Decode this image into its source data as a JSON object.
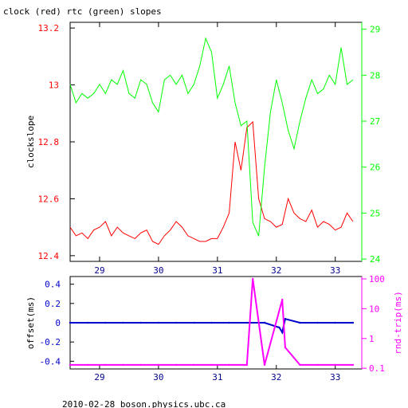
{
  "footer": "2010-02-28 boson.physics.ubc.ca",
  "colors": {
    "axis": "#000000",
    "red": "#ff0000",
    "green": "#00ff00",
    "blue": "#0000cc",
    "magenta": "#ff00ff",
    "xtick_text": "#00008b"
  },
  "chart_data": [
    {
      "type": "line",
      "title": "clock (red) rtc (green) slopes",
      "ylabel": "clockslope",
      "y2label": "",
      "xlim": [
        28.5,
        33.45
      ],
      "ylim": [
        12.38,
        13.22
      ],
      "y2lim": [
        23.95,
        29.15
      ],
      "x_ticks": [
        29,
        30,
        31,
        32,
        33
      ],
      "y_ticks": [
        12.4,
        12.6,
        12.8,
        13
      ],
      "y_tick_labels": [
        "12.4",
        "12.6",
        "12.8",
        "13"
      ],
      "y_extra_tick": 13.2,
      "y_extra_tick_label": "13.2",
      "y2_ticks": [
        24,
        25,
        26,
        27,
        28,
        29
      ],
      "y2_tick_labels": [
        "24",
        "25",
        "26",
        "27",
        "28",
        "29"
      ],
      "series": [
        {
          "name": "clock",
          "color": "#ff0000",
          "axis": "left",
          "x": [
            28.5,
            28.6,
            28.7,
            28.8,
            28.9,
            29.0,
            29.1,
            29.2,
            29.3,
            29.4,
            29.5,
            29.6,
            29.7,
            29.8,
            29.9,
            30.0,
            30.1,
            30.2,
            30.3,
            30.4,
            30.5,
            30.6,
            30.7,
            30.8,
            30.9,
            31.0,
            31.1,
            31.2,
            31.3,
            31.4,
            31.5,
            31.6,
            31.7,
            31.8,
            31.9,
            32.0,
            32.1,
            32.2,
            32.3,
            32.4,
            32.5,
            32.6,
            32.7,
            32.8,
            32.9,
            33.0,
            33.1,
            33.2,
            33.3
          ],
          "values": [
            12.5,
            12.47,
            12.48,
            12.46,
            12.49,
            12.5,
            12.52,
            12.47,
            12.5,
            12.48,
            12.47,
            12.46,
            12.48,
            12.49,
            12.45,
            12.44,
            12.47,
            12.49,
            12.52,
            12.5,
            12.47,
            12.46,
            12.45,
            12.45,
            12.46,
            12.46,
            12.5,
            12.55,
            12.8,
            12.7,
            12.85,
            12.87,
            12.6,
            12.53,
            12.52,
            12.5,
            12.51,
            12.6,
            12.55,
            12.53,
            12.52,
            12.56,
            12.5,
            12.52,
            12.51,
            12.49,
            12.5,
            12.55,
            12.52
          ]
        },
        {
          "name": "rtc",
          "color": "#00ff00",
          "axis": "right",
          "x": [
            28.5,
            28.6,
            28.7,
            28.8,
            28.9,
            29.0,
            29.1,
            29.2,
            29.3,
            29.4,
            29.5,
            29.6,
            29.7,
            29.8,
            29.9,
            30.0,
            30.1,
            30.2,
            30.3,
            30.4,
            30.5,
            30.6,
            30.7,
            30.8,
            30.9,
            31.0,
            31.1,
            31.2,
            31.3,
            31.4,
            31.5,
            31.6,
            31.7,
            31.8,
            31.9,
            32.0,
            32.1,
            32.2,
            32.3,
            32.4,
            32.5,
            32.6,
            32.7,
            32.8,
            32.9,
            33.0,
            33.1,
            33.2,
            33.3
          ],
          "values": [
            27.8,
            27.4,
            27.6,
            27.5,
            27.6,
            27.8,
            27.6,
            27.9,
            27.8,
            28.1,
            27.6,
            27.5,
            27.9,
            27.8,
            27.4,
            27.2,
            27.9,
            28.0,
            27.8,
            28.0,
            27.6,
            27.8,
            28.2,
            28.8,
            28.5,
            27.5,
            27.8,
            28.2,
            27.4,
            26.9,
            27.0,
            24.8,
            24.5,
            26.0,
            27.2,
            27.9,
            27.4,
            26.8,
            26.4,
            27.0,
            27.5,
            27.9,
            27.6,
            27.7,
            28.0,
            27.8,
            28.6,
            27.8,
            27.9
          ]
        }
      ]
    },
    {
      "type": "scatter",
      "title": "",
      "xlabel": "",
      "ylabel": "offset(ms)",
      "y2label": "rnd-trip(ms)",
      "xlim": [
        28.5,
        33.45
      ],
      "ylim": [
        -0.48,
        0.48
      ],
      "y2_scale": "log",
      "y2lim": [
        0.095,
        120
      ],
      "x_ticks": [
        29,
        30,
        31,
        32,
        33
      ],
      "y_ticks": [
        0.4,
        0.2,
        0,
        -0.2,
        -0.4
      ],
      "y_tick_labels": [
        "0.4",
        "0.2",
        "0",
        "-0.2",
        "-0.4"
      ],
      "y2_ticks": [
        100,
        10,
        1,
        0.1
      ],
      "y2_tick_labels": [
        "100",
        "10",
        "1",
        "0.1"
      ],
      "series": [
        {
          "name": "offset",
          "color": "#0000cc",
          "axis": "left",
          "x": [
            28.5,
            28.8,
            29.1,
            29.4,
            29.7,
            30.0,
            30.3,
            30.6,
            30.9,
            31.2,
            31.5,
            31.8,
            32.05,
            32.1,
            32.15,
            32.4,
            32.7,
            33.0,
            33.3
          ],
          "values": [
            0.0,
            0.0,
            0.0,
            0.0,
            0.0,
            0.0,
            0.0,
            0.0,
            0.0,
            0.0,
            0.0,
            0.0,
            -0.05,
            -0.1,
            0.04,
            0.0,
            0.0,
            0.0,
            0.0
          ]
        },
        {
          "name": "rnd-trip",
          "color": "#ff00ff",
          "axis": "right",
          "x": [
            28.5,
            28.8,
            29.1,
            29.4,
            29.7,
            30.0,
            30.3,
            30.6,
            30.9,
            31.2,
            31.5,
            31.6,
            31.8,
            32.1,
            32.15,
            32.4,
            32.7,
            33.0,
            33.3
          ],
          "values": [
            0.13,
            0.13,
            0.13,
            0.13,
            0.13,
            0.13,
            0.13,
            0.13,
            0.13,
            0.13,
            0.13,
            100,
            0.13,
            20,
            0.5,
            0.13,
            0.13,
            0.13,
            0.13
          ]
        }
      ]
    }
  ]
}
